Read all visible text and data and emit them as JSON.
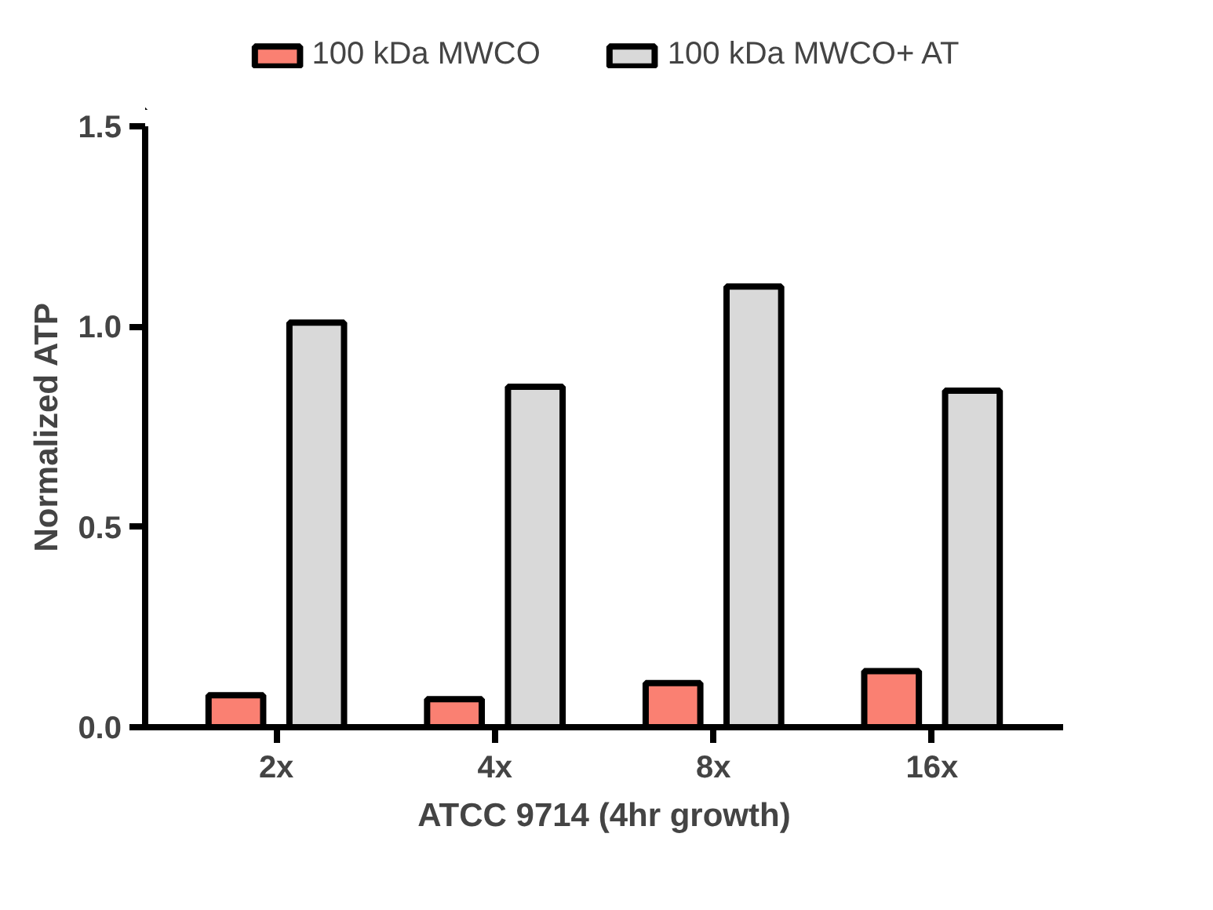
{
  "chart_data": {
    "type": "bar",
    "xlabel": "ATCC 9714 (4hr growth)",
    "ylabel": "Normalized ATP",
    "categories": [
      "2x",
      "4x",
      "8x",
      "16x"
    ],
    "series": [
      {
        "name": "100 kDa MWCO",
        "color": "#fa8072",
        "values": [
          0.08,
          0.07,
          0.11,
          0.14
        ]
      },
      {
        "name": "100 kDa MWCO+ AT",
        "color": "#d9d9d9",
        "values": [
          1.01,
          0.85,
          1.1,
          0.84
        ]
      }
    ],
    "ylim": [
      0,
      1.5
    ],
    "yticks": [
      {
        "value": 0,
        "label": "0.0"
      },
      {
        "value": 0.5,
        "label": "0.5"
      },
      {
        "value": 1,
        "label": "1.0"
      },
      {
        "value": 1.5,
        "label": "1.5"
      }
    ],
    "grid": false,
    "legend": "top"
  }
}
